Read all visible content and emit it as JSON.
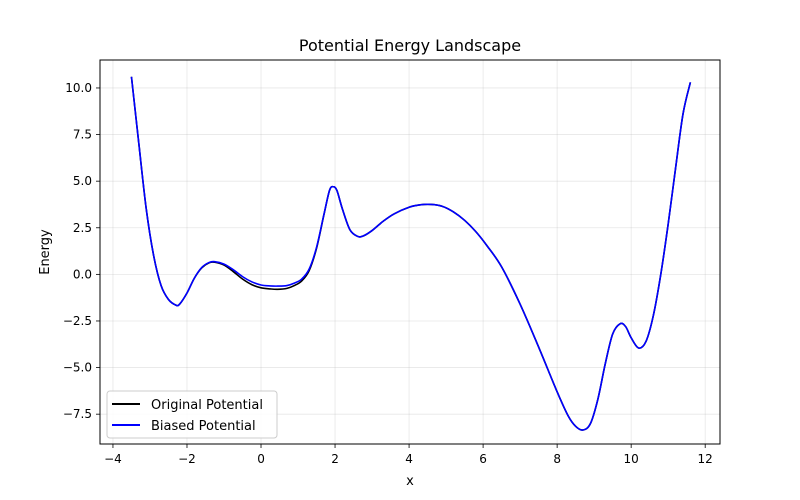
{
  "chart_data": {
    "type": "line",
    "title": "Potential Energy Landscape",
    "xlabel": "x",
    "ylabel": "Energy",
    "xlim": [
      -4.35,
      12.4
    ],
    "ylim": [
      -9.1,
      11.5
    ],
    "xticks": [
      -4,
      -2,
      0,
      2,
      4,
      6,
      8,
      10,
      12
    ],
    "yticks": [
      -7.5,
      -5.0,
      -2.5,
      0.0,
      2.5,
      5.0,
      7.5,
      10.0
    ],
    "xtick_labels": [
      "−4",
      "−2",
      "0",
      "2",
      "4",
      "6",
      "8",
      "10",
      "12"
    ],
    "ytick_labels": [
      "−7.5",
      "−5.0",
      "−2.5",
      "0.0",
      "2.5",
      "5.0",
      "7.5",
      "10.0"
    ],
    "grid": true,
    "legend_position": "lower-left",
    "series": [
      {
        "name": "Original Potential",
        "color": "#000000",
        "x": [
          -3.5,
          -3.3,
          -3.1,
          -2.9,
          -2.7,
          -2.5,
          -2.3,
          -2.2,
          -2.0,
          -1.8,
          -1.6,
          -1.4,
          -1.25,
          -1.0,
          -0.75,
          -0.5,
          -0.25,
          0.0,
          0.25,
          0.45,
          0.7,
          0.9,
          1.1,
          1.3,
          1.5,
          1.7,
          1.85,
          1.95,
          2.05,
          2.2,
          2.4,
          2.6,
          2.75,
          3.0,
          3.3,
          3.6,
          4.0,
          4.3,
          4.6,
          4.9,
          5.2,
          5.5,
          5.8,
          6.1,
          6.5,
          7.0,
          7.5,
          8.0,
          8.3,
          8.5,
          8.7,
          8.9,
          9.1,
          9.3,
          9.5,
          9.7,
          9.85,
          10.0,
          10.2,
          10.4,
          10.6,
          10.8,
          11.0,
          11.2,
          11.4,
          11.6
        ],
        "y": [
          10.6,
          7.0,
          3.5,
          1.0,
          -0.6,
          -1.35,
          -1.65,
          -1.6,
          -1.0,
          -0.2,
          0.35,
          0.62,
          0.65,
          0.5,
          0.15,
          -0.25,
          -0.55,
          -0.72,
          -0.78,
          -0.8,
          -0.75,
          -0.6,
          -0.35,
          0.2,
          1.4,
          3.2,
          4.5,
          4.7,
          4.5,
          3.5,
          2.4,
          2.05,
          2.05,
          2.35,
          2.85,
          3.25,
          3.6,
          3.73,
          3.75,
          3.65,
          3.35,
          2.9,
          2.3,
          1.55,
          0.4,
          -1.6,
          -3.9,
          -6.3,
          -7.6,
          -8.15,
          -8.35,
          -8.0,
          -6.7,
          -4.8,
          -3.2,
          -2.65,
          -2.8,
          -3.4,
          -3.95,
          -3.6,
          -2.2,
          0.0,
          2.7,
          5.7,
          8.6,
          10.3
        ]
      },
      {
        "name": "Biased Potential",
        "color": "#0000ff",
        "x": [
          -3.5,
          -3.3,
          -3.1,
          -2.9,
          -2.7,
          -2.5,
          -2.3,
          -2.2,
          -2.0,
          -1.8,
          -1.6,
          -1.4,
          -1.25,
          -1.0,
          -0.75,
          -0.5,
          -0.25,
          0.0,
          0.25,
          0.45,
          0.7,
          0.9,
          1.1,
          1.3,
          1.5,
          1.7,
          1.85,
          1.95,
          2.05,
          2.2,
          2.4,
          2.6,
          2.75,
          3.0,
          3.3,
          3.6,
          4.0,
          4.3,
          4.6,
          4.9,
          5.2,
          5.5,
          5.8,
          6.1,
          6.5,
          7.0,
          7.5,
          8.0,
          8.3,
          8.5,
          8.7,
          8.9,
          9.1,
          9.3,
          9.5,
          9.7,
          9.85,
          10.0,
          10.2,
          10.4,
          10.6,
          10.8,
          11.0,
          11.2,
          11.4,
          11.6
        ],
        "y": [
          10.6,
          7.0,
          3.5,
          1.0,
          -0.6,
          -1.35,
          -1.65,
          -1.6,
          -1.0,
          -0.2,
          0.37,
          0.64,
          0.68,
          0.55,
          0.25,
          -0.12,
          -0.4,
          -0.57,
          -0.62,
          -0.63,
          -0.6,
          -0.47,
          -0.25,
          0.28,
          1.45,
          3.22,
          4.5,
          4.7,
          4.5,
          3.5,
          2.4,
          2.05,
          2.05,
          2.35,
          2.85,
          3.25,
          3.6,
          3.73,
          3.75,
          3.65,
          3.35,
          2.9,
          2.3,
          1.55,
          0.4,
          -1.6,
          -3.9,
          -6.3,
          -7.6,
          -8.15,
          -8.35,
          -8.0,
          -6.7,
          -4.8,
          -3.2,
          -2.65,
          -2.8,
          -3.4,
          -3.95,
          -3.6,
          -2.2,
          0.0,
          2.7,
          5.7,
          8.6,
          10.3
        ]
      }
    ]
  }
}
